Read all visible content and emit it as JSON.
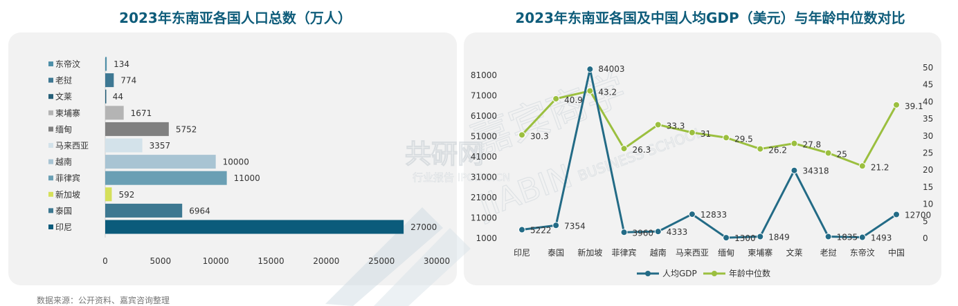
{
  "titles": {
    "left": "2023年东南亚各国人口总数（万人）",
    "right": "2023年东南亚各国及中国人均GDP（美元）与年龄中位数对比"
  },
  "source": "数据来源：公开资料、嘉宾咨询整理",
  "watermark": {
    "brand": "共研网",
    "sub": "行业报告 IPOIPO.CN",
    "school": "嘉宾商学",
    "latin": "JIABIN",
    "latin2": "BUSINESS SCHOOL"
  },
  "chart_data": [
    {
      "type": "bar",
      "orientation": "horizontal",
      "title": "2023年东南亚各国人口总数（万人）",
      "categories": [
        "东帝汶",
        "老挝",
        "文莱",
        "柬埔寨",
        "缅甸",
        "马来西亚",
        "越南",
        "菲律宾",
        "新加坡",
        "泰国",
        "印尼"
      ],
      "values": [
        134,
        774,
        44,
        1671,
        5752,
        3357,
        10000,
        11000,
        592,
        6964,
        27000
      ],
      "colors": [
        "#4f90a9",
        "#3e7893",
        "#255f78",
        "#b4b4b4",
        "#808080",
        "#d3e2ea",
        "#a8c4d3",
        "#6a9fb4",
        "#d5e05a",
        "#3d7891",
        "#0b5b7b"
      ],
      "xlim": [
        0,
        30000
      ],
      "xticks": [
        "0",
        "5000",
        "10000",
        "15000",
        "20000",
        "25000",
        "30000"
      ]
    },
    {
      "type": "line",
      "title": "2023年东南亚各国及中国人均GDP（美元）与年龄中位数对比",
      "categories": [
        "印尼",
        "泰国",
        "新加坡",
        "菲律宾",
        "越南",
        "马来西亚",
        "缅甸",
        "柬埔寨",
        "文莱",
        "老挝",
        "东帝汶",
        "中国"
      ],
      "series": [
        {
          "name": "人均GDP",
          "axis": "left",
          "color": "#236b86",
          "values": [
            5222,
            7354,
            84003,
            3960,
            4333,
            12833,
            1300,
            1849,
            34318,
            1835,
            1493,
            12700
          ]
        },
        {
          "name": "年龄中位数",
          "axis": "right",
          "color": "#9bbf3f",
          "values": [
            30.3,
            40.9,
            43.2,
            26.3,
            33.3,
            31,
            29.5,
            26.2,
            27.8,
            25,
            21.2,
            39.1
          ]
        }
      ],
      "left_axis": {
        "ylim": [
          1000,
          84000
        ],
        "ticks": [
          "1000",
          "11000",
          "21000",
          "31000",
          "41000",
          "51000",
          "61000",
          "71000",
          "81000"
        ]
      },
      "right_axis": {
        "ylim": [
          0,
          50
        ],
        "ticks": [
          "0",
          "5",
          "10",
          "15",
          "20",
          "25",
          "30",
          "35",
          "40",
          "45",
          "50"
        ]
      },
      "legend_position": "bottom"
    }
  ]
}
